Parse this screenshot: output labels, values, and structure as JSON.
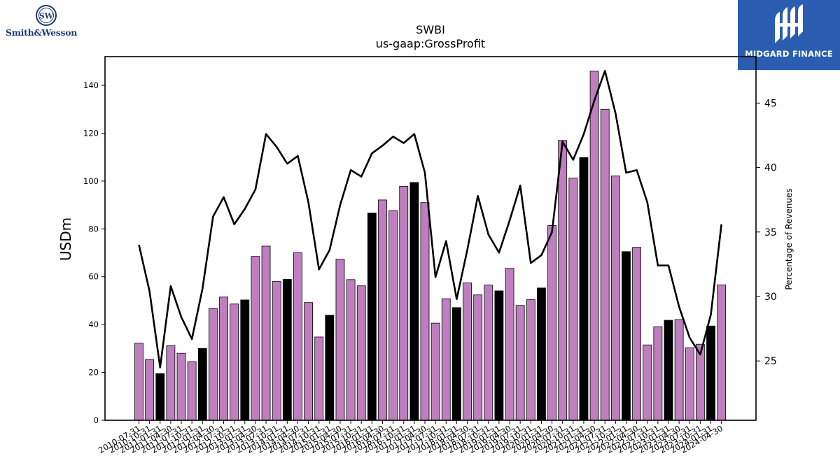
{
  "brand": {
    "company_logo_text": "Smith&Wesson",
    "finance_logo_text": "MIDGARD FINANCE",
    "finance_logo_bg": "#2a5db0"
  },
  "chart_data": {
    "type": "bar",
    "title": "SWBI",
    "subtitle": "us-gaap:GrossProfit",
    "ylabel": "USDm",
    "y2label": "Percentage of Revenues",
    "ylim": [
      0,
      152
    ],
    "y_ticks": [
      0,
      20,
      40,
      60,
      80,
      100,
      120,
      140
    ],
    "y2lim": [
      20.4,
      48.6
    ],
    "y2_ticks": [
      25,
      30,
      35,
      40,
      45
    ],
    "bar_color": "#bf7fbf",
    "highlight_color": "#000000",
    "line_color": "#000000",
    "categories": [
      "2010-07-31",
      "2010-10-31",
      "2011-01-31",
      "2011-04-30",
      "2011-07-31",
      "2011-10-31",
      "2012-01-31",
      "2012-04-30",
      "2012-07-31",
      "2012-10-31",
      "2013-01-31",
      "2013-04-30",
      "2013-07-31",
      "2013-10-31",
      "2014-01-31",
      "2014-04-30",
      "2014-07-31",
      "2014-10-31",
      "2015-01-31",
      "2015-04-30",
      "2015-07-31",
      "2015-10-31",
      "2016-01-31",
      "2016-04-30",
      "2016-07-31",
      "2016-10-31",
      "2017-01-31",
      "2017-04-30",
      "2017-07-31",
      "2017-10-31",
      "2018-01-31",
      "2018-04-30",
      "2018-07-31",
      "2018-10-31",
      "2019-01-31",
      "2019-04-30",
      "2019-07-31",
      "2019-10-31",
      "2020-01-31",
      "2020-04-30",
      "2020-07-31",
      "2020-10-31",
      "2021-01-31",
      "2021-04-30",
      "2021-07-31",
      "2021-10-31",
      "2022-01-31",
      "2022-04-30",
      "2022-07-31",
      "2022-10-31",
      "2023-01-31",
      "2023-04-30",
      "2023-07-31",
      "2023-10-31",
      "2024-01-31",
      "2024-04-30"
    ],
    "series": [
      {
        "type": "bar",
        "axis": "left",
        "values": [
          32.2,
          25.4,
          19.5,
          31.2,
          28.0,
          24.5,
          30.0,
          46.7,
          51.5,
          48.6,
          50.3,
          68.5,
          72.8,
          58.0,
          58.9,
          70.0,
          49.2,
          34.8,
          43.9,
          67.3,
          58.8,
          56.2,
          86.6,
          92.1,
          87.6,
          97.8,
          99.4,
          91.0,
          40.6,
          50.8,
          47.1,
          57.4,
          52.4,
          56.5,
          54.1,
          63.5,
          48.0,
          50.4,
          55.3,
          81.4,
          117.0,
          101.2,
          109.8,
          145.9,
          130.0,
          102.1,
          70.5,
          72.3,
          31.5,
          39.1,
          41.8,
          42.1,
          30.3,
          31.8,
          39.4,
          56.6
        ],
        "highlight": [
          false,
          false,
          true,
          false,
          false,
          false,
          true,
          false,
          false,
          false,
          true,
          false,
          false,
          false,
          true,
          false,
          false,
          false,
          true,
          false,
          false,
          false,
          true,
          false,
          false,
          false,
          true,
          false,
          false,
          false,
          true,
          false,
          false,
          false,
          true,
          false,
          false,
          false,
          true,
          false,
          false,
          false,
          true,
          false,
          false,
          false,
          true,
          false,
          false,
          false,
          true,
          false,
          false,
          false,
          true,
          false
        ]
      },
      {
        "type": "line",
        "axis": "right",
        "values": [
          34.0,
          30.4,
          24.5,
          30.8,
          28.4,
          26.7,
          30.6,
          36.2,
          37.7,
          35.6,
          36.8,
          38.3,
          42.6,
          41.6,
          40.3,
          40.9,
          37.3,
          32.1,
          33.6,
          37.1,
          39.8,
          39.3,
          41.1,
          41.7,
          42.4,
          41.9,
          42.6,
          39.6,
          31.5,
          34.3,
          29.8,
          33.6,
          37.8,
          34.8,
          33.4,
          35.9,
          38.6,
          32.6,
          33.2,
          35.0,
          42.0,
          40.6,
          42.6,
          45.2,
          47.5,
          44.2,
          39.6,
          39.8,
          37.3,
          32.4,
          32.4,
          29.2,
          26.8,
          25.5,
          28.6,
          35.6
        ]
      }
    ]
  }
}
